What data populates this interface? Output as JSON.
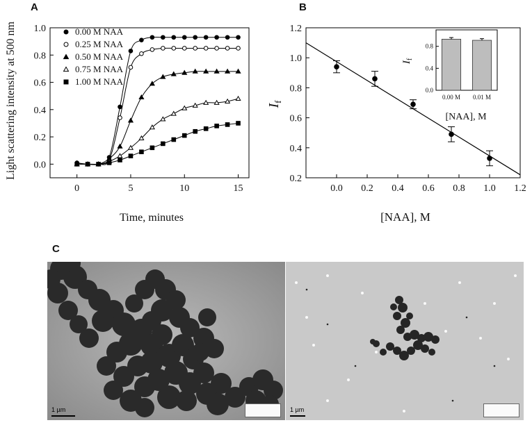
{
  "panels": {
    "a": "A",
    "b": "B",
    "c": "C"
  },
  "chart_data": [
    {
      "type": "scatter",
      "panel": "A",
      "xlabel": "Time, minutes",
      "ylabel": "Light scattering intensity at 500 nm",
      "xlim": [
        -2.5,
        16
      ],
      "ylim": [
        -0.1,
        1.0
      ],
      "xticks": [
        "0",
        "5",
        "10",
        "15"
      ],
      "yticks": [
        "0.0",
        "0.2",
        "0.4",
        "0.6",
        "0.8",
        "1.0"
      ],
      "legend_position": "top-left",
      "x": [
        0,
        1,
        2,
        3,
        4,
        5,
        6,
        7,
        8,
        9,
        10,
        11,
        12,
        13,
        14,
        15
      ],
      "series": [
        {
          "name": "0.00 M NAA",
          "marker": "filled-circle",
          "values": [
            0.01,
            0.0,
            0.0,
            0.05,
            0.42,
            0.83,
            0.91,
            0.93,
            0.93,
            0.93,
            0.93,
            0.93,
            0.93,
            0.93,
            0.93,
            0.93
          ]
        },
        {
          "name": "0.25 M NAA",
          "marker": "open-circle",
          "values": [
            0.0,
            0.0,
            0.0,
            0.03,
            0.34,
            0.71,
            0.81,
            0.84,
            0.85,
            0.85,
            0.85,
            0.85,
            0.85,
            0.85,
            0.85,
            0.85
          ]
        },
        {
          "name": "0.50 M NAA",
          "marker": "filled-triangle",
          "values": [
            0.0,
            0.0,
            0.0,
            0.04,
            0.13,
            0.32,
            0.49,
            0.59,
            0.64,
            0.66,
            0.67,
            0.68,
            0.68,
            0.68,
            0.68,
            0.68
          ]
        },
        {
          "name": "0.75 M NAA",
          "marker": "open-triangle",
          "values": [
            0.0,
            0.0,
            0.0,
            0.02,
            0.06,
            0.12,
            0.19,
            0.27,
            0.33,
            0.37,
            0.41,
            0.43,
            0.45,
            0.45,
            0.46,
            0.48
          ]
        },
        {
          "name": "1.00 M NAA",
          "marker": "filled-square",
          "values": [
            0.0,
            0.0,
            0.0,
            0.01,
            0.03,
            0.06,
            0.09,
            0.12,
            0.15,
            0.18,
            0.21,
            0.24,
            0.26,
            0.28,
            0.29,
            0.3
          ]
        }
      ]
    },
    {
      "type": "scatter",
      "panel": "B",
      "xlabel": "[NAA], M",
      "ylabel": "If",
      "xlim": [
        -0.2,
        1.2
      ],
      "ylim": [
        0.2,
        1.2
      ],
      "xticks": [
        "0.0",
        "0.2",
        "0.4",
        "0.6",
        "0.8",
        "1.0",
        "1.2"
      ],
      "yticks": [
        "0.2",
        "0.4",
        "0.6",
        "0.8",
        "1.0",
        "1.2"
      ],
      "x": [
        0.0,
        0.25,
        0.5,
        0.75,
        1.0
      ],
      "values": [
        0.94,
        0.86,
        0.69,
        0.49,
        0.33
      ],
      "errors": [
        0.04,
        0.05,
        0.03,
        0.05,
        0.05
      ],
      "fit_line": {
        "x": [
          -0.2,
          1.2
        ],
        "y": [
          1.1,
          0.22
        ]
      }
    },
    {
      "type": "bar",
      "panel": "B-inset",
      "xlabel": "[NAA], M",
      "ylabel": "If",
      "categories": [
        "0.00 M",
        "0.01 M"
      ],
      "values": [
        0.93,
        0.91
      ],
      "errors": [
        0.03,
        0.03
      ],
      "ylim": [
        0,
        1.1
      ],
      "yticks": [
        "0.0",
        "0.4",
        "0.8"
      ]
    }
  ],
  "micrographs": [
    {
      "scale_label": "1 µm"
    },
    {
      "scale_label": "1 µm"
    }
  ]
}
